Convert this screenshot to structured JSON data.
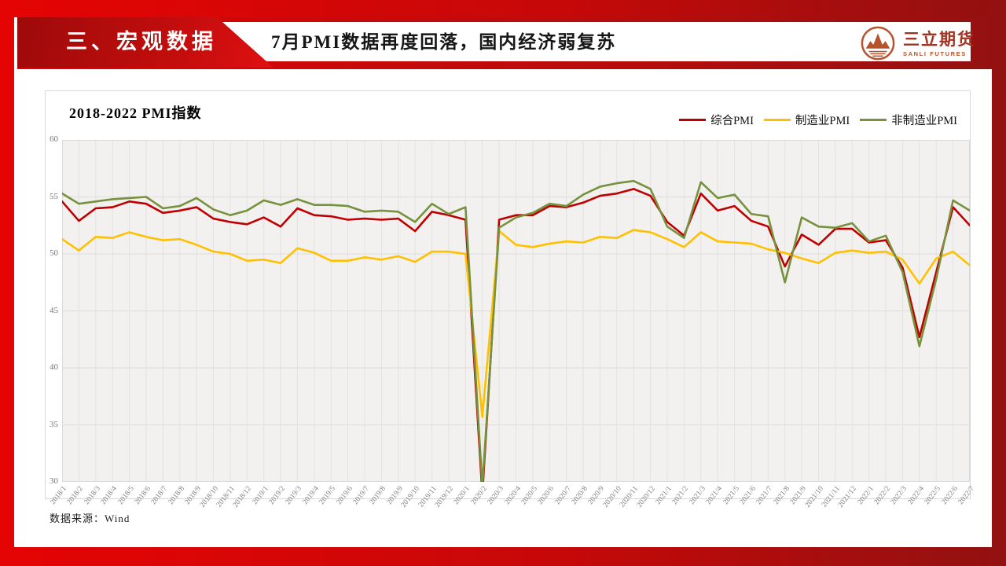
{
  "slide": {
    "section_label": "三、宏观数据",
    "title": "7月PMI数据再度回落，国内经济弱复苏",
    "source": "数据来源：Wind"
  },
  "logo": {
    "name": "三立期货",
    "subtitle": "SANLI FUTURES",
    "icon": "mountain-in-circle",
    "color": "#b4532c"
  },
  "colors": {
    "slide_red": "#e50404",
    "slide_red_dark": "#921111",
    "banner_red": "#c50d0d",
    "composite_red": "#c00000",
    "manufacturing_yellow": "#ffc000",
    "nonmanufacturing_green": "#76923c",
    "plot_background": "#f2f1ef",
    "gridline": "#dedddb"
  },
  "chart_data": {
    "type": "line",
    "title": "2018-2022 PMI指数",
    "xlabel": "",
    "ylabel": "",
    "ylim": [
      30,
      60
    ],
    "yticks": [
      30,
      35,
      40,
      45,
      50,
      55,
      60
    ],
    "grid": true,
    "legend_position": "top-right",
    "categories": [
      "2018/1",
      "2018/2",
      "2018/3",
      "2018/4",
      "2018/5",
      "2018/6",
      "2018/7",
      "2018/8",
      "2018/9",
      "2018/10",
      "2018/11",
      "2018/12",
      "2019/1",
      "2019/2",
      "2019/3",
      "2019/4",
      "2019/5",
      "2019/6",
      "2019/7",
      "2019/8",
      "2019/9",
      "2019/10",
      "2019/11",
      "2019/12",
      "2020/1",
      "2020/2",
      "2020/3",
      "2020/4",
      "2020/5",
      "2020/6",
      "2020/7",
      "2020/8",
      "2020/9",
      "2020/10",
      "2020/11",
      "2020/12",
      "2021/1",
      "2021/2",
      "2021/3",
      "2021/4",
      "2021/5",
      "2021/6",
      "2021/7",
      "2021/8",
      "2021/9",
      "2021/10",
      "2021/11",
      "2021/12",
      "2022/1",
      "2022/2",
      "2022/3",
      "2022/4",
      "2022/5",
      "2022/6",
      "2022/7"
    ],
    "series": [
      {
        "name": "综合PMI",
        "color": "#c00000",
        "values": [
          54.6,
          52.9,
          54.0,
          54.1,
          54.6,
          54.4,
          53.6,
          53.8,
          54.1,
          53.1,
          52.8,
          52.6,
          53.2,
          52.4,
          54.0,
          53.4,
          53.3,
          53.0,
          53.1,
          53.0,
          53.1,
          52.0,
          53.7,
          53.4,
          53.0,
          28.9,
          53.0,
          53.4,
          53.4,
          54.2,
          54.1,
          54.5,
          55.1,
          55.3,
          55.7,
          55.1,
          52.8,
          51.6,
          55.3,
          53.8,
          54.2,
          52.9,
          52.4,
          48.9,
          51.7,
          50.8,
          52.2,
          52.2,
          51.0,
          51.2,
          48.8,
          42.7,
          48.4,
          54.1,
          52.5
        ]
      },
      {
        "name": "制造业PMI",
        "color": "#ffc000",
        "values": [
          51.3,
          50.3,
          51.5,
          51.4,
          51.9,
          51.5,
          51.2,
          51.3,
          50.8,
          50.2,
          50.0,
          49.4,
          49.5,
          49.2,
          50.5,
          50.1,
          49.4,
          49.4,
          49.7,
          49.5,
          49.8,
          49.3,
          50.2,
          50.2,
          50.0,
          35.7,
          52.0,
          50.8,
          50.6,
          50.9,
          51.1,
          51.0,
          51.5,
          51.4,
          52.1,
          51.9,
          51.3,
          50.6,
          51.9,
          51.1,
          51.0,
          50.9,
          50.4,
          50.1,
          49.6,
          49.2,
          50.1,
          50.3,
          50.1,
          50.2,
          49.5,
          47.4,
          49.6,
          50.2,
          49.0
        ]
      },
      {
        "name": "非制造业PMI",
        "color": "#76923c",
        "values": [
          55.3,
          54.4,
          54.6,
          54.8,
          54.9,
          55.0,
          54.0,
          54.2,
          54.9,
          53.9,
          53.4,
          53.8,
          54.7,
          54.3,
          54.8,
          54.3,
          54.3,
          54.2,
          53.7,
          53.8,
          53.7,
          52.8,
          54.4,
          53.5,
          54.1,
          29.6,
          52.3,
          53.2,
          53.6,
          54.4,
          54.2,
          55.2,
          55.9,
          56.2,
          56.4,
          55.7,
          52.4,
          51.4,
          56.3,
          54.9,
          55.2,
          53.5,
          53.3,
          47.5,
          53.2,
          52.4,
          52.3,
          52.7,
          51.1,
          51.6,
          48.4,
          41.9,
          47.8,
          54.7,
          53.8
        ]
      }
    ]
  }
}
